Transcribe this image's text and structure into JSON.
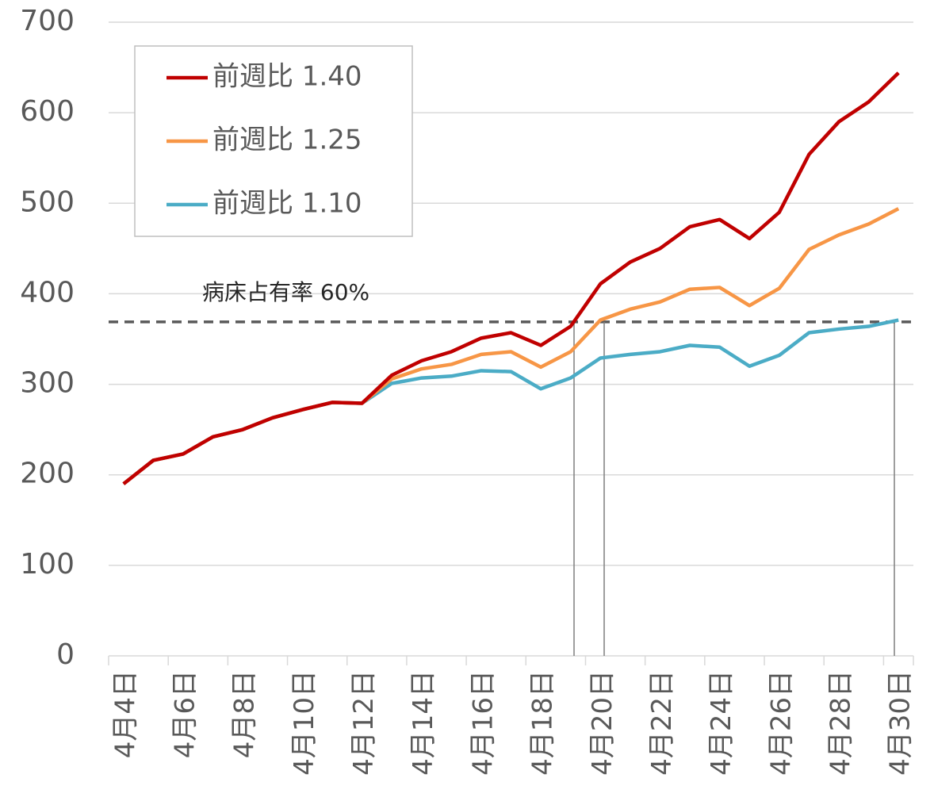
{
  "chart_data": {
    "type": "line",
    "categories": [
      "4月4日",
      null,
      "4月6日",
      null,
      "4月8日",
      null,
      "4月10日",
      null,
      "4月12日",
      null,
      "4月14日",
      null,
      "4月16日",
      null,
      "4月18日",
      null,
      "4月20日",
      null,
      "4月22日",
      null,
      "4月24日",
      null,
      "4月26日",
      null,
      "4月28日",
      null,
      "4月30日"
    ],
    "series": [
      {
        "name": "前週比 1.40",
        "color": "#c00000",
        "values": [
          190,
          216,
          223,
          242,
          250,
          263,
          272,
          280,
          279,
          310,
          326,
          336,
          351,
          357,
          343,
          364,
          411,
          435,
          450,
          474,
          482,
          461,
          490,
          554,
          590,
          612,
          644
        ]
      },
      {
        "name": "前週比 1.25",
        "color": "#f79646",
        "values": [
          190,
          216,
          223,
          242,
          250,
          263,
          272,
          280,
          279,
          306,
          317,
          322,
          333,
          336,
          319,
          336,
          371,
          383,
          391,
          405,
          407,
          387,
          406,
          449,
          465,
          477,
          494
        ]
      },
      {
        "name": "前週比 1.10",
        "color": "#4bacc6",
        "values": [
          190,
          216,
          223,
          242,
          250,
          263,
          272,
          280,
          279,
          301,
          307,
          309,
          315,
          314,
          295,
          307,
          329,
          333,
          336,
          343,
          341,
          320,
          332,
          357,
          361,
          364,
          371
        ]
      }
    ],
    "threshold": {
      "value": 369,
      "label": "病床占有率 60%"
    },
    "ylim": [
      0,
      700
    ],
    "yticks": [
      0,
      100,
      200,
      300,
      400,
      500,
      600,
      700
    ],
    "grid": true,
    "legend": "top-left"
  }
}
